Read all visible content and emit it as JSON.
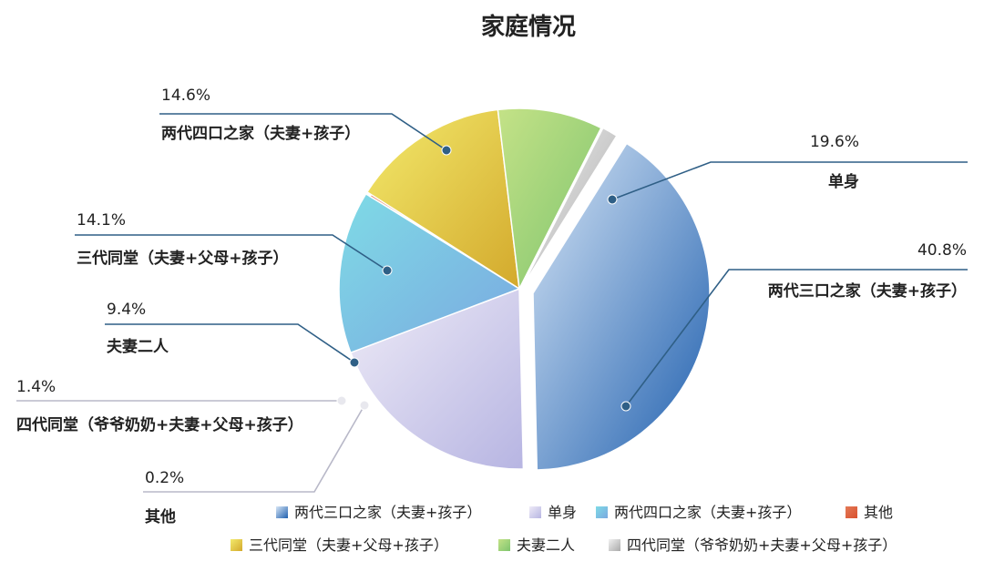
{
  "chart_data": {
    "type": "pie",
    "title": "家庭情况",
    "series": [
      {
        "name": "两代三口之家（夫妻+孩子）",
        "value": 40.8,
        "label": "40.8%",
        "colors": [
          "#d7e6f6",
          "#1f5fae"
        ]
      },
      {
        "name": "单身",
        "value": 19.6,
        "label": "19.6%",
        "colors": [
          "#eeebf7",
          "#b7b5e2"
        ]
      },
      {
        "name": "两代四口之家（夫妻+孩子）",
        "value": 14.6,
        "label": "14.6%",
        "colors": [
          "#7fdbe6",
          "#7aa8e0"
        ]
      },
      {
        "name": "其他",
        "value": 0.2,
        "label": "0.2%",
        "colors": [
          "#e37a57",
          "#d9502e"
        ]
      },
      {
        "name": "三代同堂（夫妻+父母+孩子）",
        "value": 14.1,
        "label": "14.1%",
        "colors": [
          "#f3ea6c",
          "#d3a92c"
        ]
      },
      {
        "name": "夫妻二人",
        "value": 9.4,
        "label": "9.4%",
        "colors": [
          "#c4e287",
          "#7ec46e"
        ]
      },
      {
        "name": "四代同堂（爷爷奶奶+夫妻+父母+孩子）",
        "value": 1.4,
        "label": "1.4%",
        "colors": [
          "#f1f1f1",
          "#a9a9a9"
        ]
      }
    ],
    "legend_position": "bottom",
    "line_color": "#2f5f86"
  }
}
